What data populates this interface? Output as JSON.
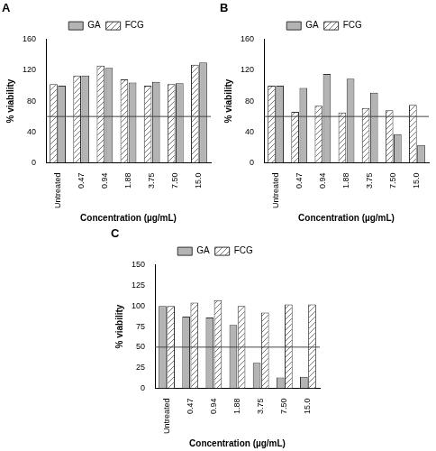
{
  "chart_data": [
    {
      "type": "bar",
      "title": "A",
      "x_label": "Concentration (µg/mL)",
      "y_label": "% viability",
      "categories": [
        "Untreated",
        "0.47",
        "0.94",
        "1.88",
        "3.75",
        "7.50",
        "15.0"
      ],
      "series": [
        {
          "name": "FCG",
          "color": "#ffffff",
          "marker": "hatch",
          "values": [
            102,
            113,
            126,
            108,
            100,
            102,
            127
          ]
        },
        {
          "name": "GA",
          "color": "#b4b4b4",
          "marker": "solid",
          "values": [
            100,
            113,
            123,
            104,
            105,
            103,
            130
          ]
        }
      ],
      "ylim": [
        0,
        160
      ],
      "yticks": [
        0,
        40,
        80,
        120,
        160
      ],
      "threshold": 60,
      "grid": false,
      "legend": "top"
    },
    {
      "type": "bar",
      "title": "B",
      "x_label": "Concentration (µg/mL)",
      "y_label": "% viability",
      "categories": [
        "Untreated",
        "0.47",
        "0.94",
        "1.88",
        "3.75",
        "7.50",
        "15.0"
      ],
      "series": [
        {
          "name": "FCG",
          "color": "#ffffff",
          "marker": "hatch",
          "values": [
            100,
            66,
            74,
            65,
            71,
            68,
            75
          ]
        },
        {
          "name": "GA",
          "color": "#b4b4b4",
          "marker": "solid",
          "values": [
            100,
            97,
            115,
            109,
            91,
            37,
            23
          ]
        }
      ],
      "ylim": [
        0,
        160
      ],
      "yticks": [
        0,
        40,
        80,
        120,
        160
      ],
      "threshold": 60,
      "grid": false,
      "legend": "top"
    },
    {
      "type": "bar",
      "title": "C",
      "x_label": "Concentration (µg/mL)",
      "y_label": "% viability",
      "categories": [
        "Untreated",
        "0.47",
        "0.94",
        "1.88",
        "3.75",
        "7.50",
        "15.0"
      ],
      "series": [
        {
          "name": "GA",
          "color": "#b4b4b4",
          "marker": "solid",
          "values": [
            100,
            87,
            86,
            77,
            31,
            13,
            14
          ]
        },
        {
          "name": "FCG",
          "color": "#ffffff",
          "marker": "hatch",
          "values": [
            100,
            104,
            107,
            100,
            92,
            102,
            102
          ]
        }
      ],
      "ylim": [
        0,
        150
      ],
      "yticks": [
        0,
        25,
        50,
        75,
        100,
        125,
        150
      ],
      "threshold": 50,
      "grid": false,
      "legend": "top"
    }
  ]
}
